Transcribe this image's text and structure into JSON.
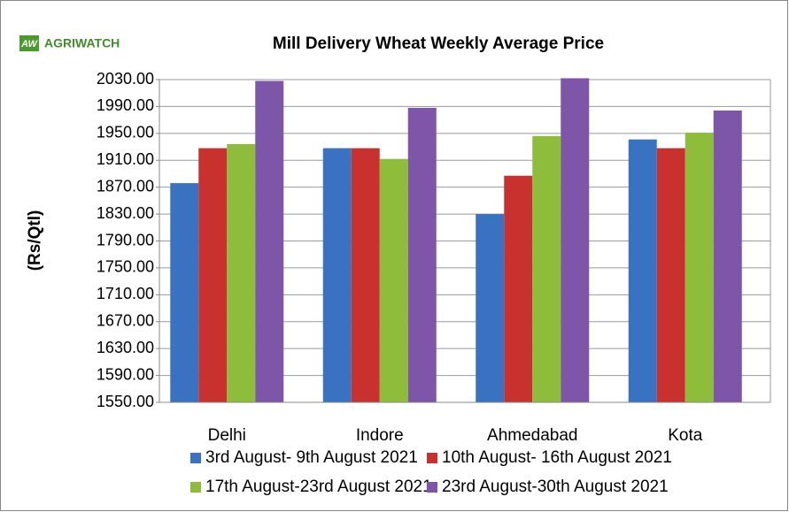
{
  "logo": {
    "icon": "AW",
    "text": "AGRIWATCH"
  },
  "chart_data": {
    "type": "bar",
    "title": "Mill Delivery Wheat Weekly Average Price",
    "y_label": "(Rs/Qtl)",
    "categories": [
      "Delhi",
      "Indore",
      "Ahmedabad",
      "Kota"
    ],
    "series": [
      {
        "name": "3rd August- 9th August 2021",
        "color": "#3a72c2",
        "values": [
          1876,
          1928,
          1830,
          1941
        ]
      },
      {
        "name": "10th August- 16th August 2021",
        "color": "#c8312d",
        "values": [
          1928,
          1928,
          1887,
          1928
        ]
      },
      {
        "name": "17th August-23rd August 2021",
        "color": "#8dbd3b",
        "values": [
          1934,
          1912,
          1946,
          1951
        ]
      },
      {
        "name": "23rd August-30th August 2021",
        "color": "#7d56a9",
        "values": [
          2028,
          1988,
          2032,
          1984
        ]
      }
    ],
    "ylim": [
      1550,
      2030
    ],
    "yticks": [
      {
        "value": 1550,
        "label": "1550.00"
      },
      {
        "value": 1590,
        "label": "1590.00"
      },
      {
        "value": 1630,
        "label": "1630.00"
      },
      {
        "value": 1670,
        "label": "1670.00"
      },
      {
        "value": 1710,
        "label": "1710.00"
      },
      {
        "value": 1750,
        "label": "1750.00"
      },
      {
        "value": 1790,
        "label": "1790.00"
      },
      {
        "value": 1830,
        "label": "1830.00"
      },
      {
        "value": 1870,
        "label": "1870.00"
      },
      {
        "value": 1910,
        "label": "1910.00"
      },
      {
        "value": 1950,
        "label": "1950.00"
      },
      {
        "value": 1990,
        "label": "1990.00"
      },
      {
        "value": 2030,
        "label": "2030.00"
      }
    ],
    "grid": true
  }
}
